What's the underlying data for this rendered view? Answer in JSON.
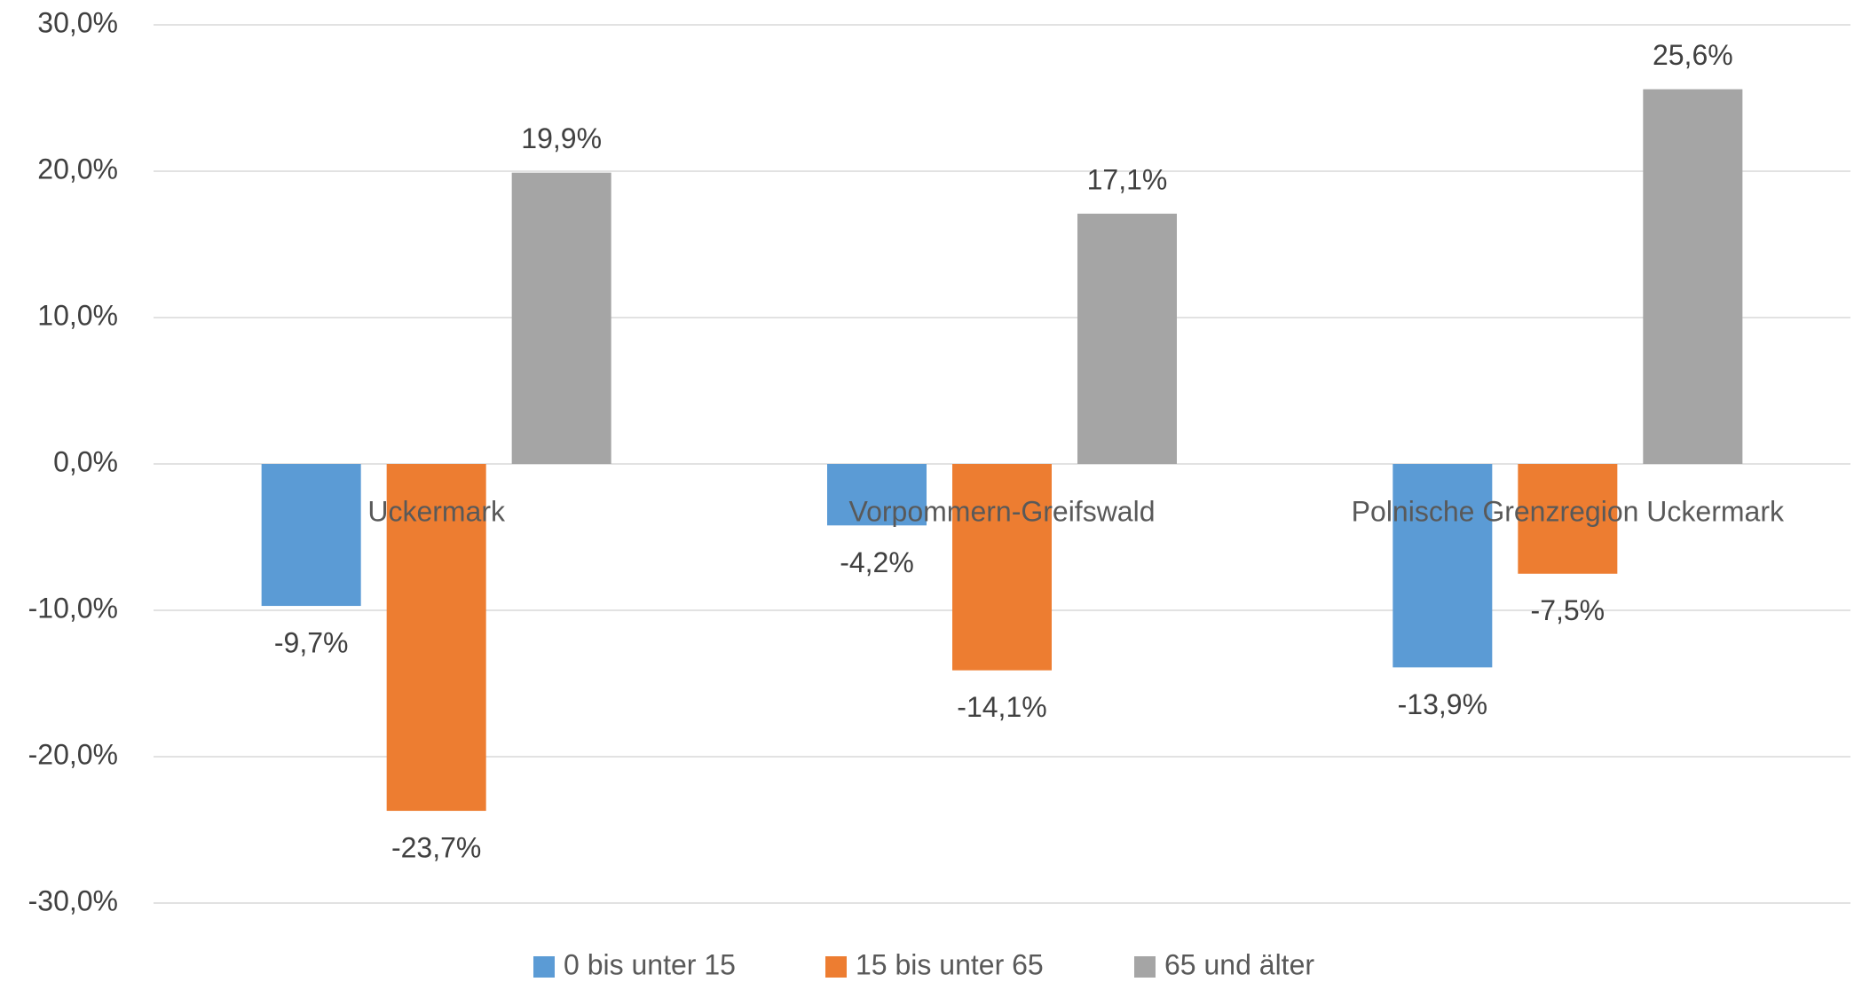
{
  "chart_data": {
    "type": "bar",
    "categories": [
      "Uckermark",
      "Vorpommern-Greifswald",
      "Polnische Grenzregion Uckermark"
    ],
    "series": [
      {
        "name": "0 bis unter 15",
        "color": "#5b9bd5",
        "values": [
          -9.7,
          -4.2,
          -13.9
        ],
        "value_labels": [
          "-9,7%",
          "-4,2%",
          "-13,9%"
        ]
      },
      {
        "name": "15 bis unter 65",
        "color": "#ed7d31",
        "values": [
          -23.7,
          -14.1,
          -7.5
        ],
        "value_labels": [
          "-23,7%",
          "-14,1%",
          "-7,5%"
        ]
      },
      {
        "name": "65 und älter",
        "color": "#a5a5a5",
        "values": [
          19.9,
          17.1,
          25.6
        ],
        "value_labels": [
          "19,9%",
          "17,1%",
          "25,6%"
        ]
      }
    ],
    "ylim": [
      -30,
      30
    ],
    "yticks": [
      {
        "value": -30,
        "label": "-30,0%"
      },
      {
        "value": -20,
        "label": "-20,0%"
      },
      {
        "value": -10,
        "label": "-10,0%"
      },
      {
        "value": 0,
        "label": "0,0%"
      },
      {
        "value": 10,
        "label": "10,0%"
      },
      {
        "value": 20,
        "label": "20,0%"
      },
      {
        "value": 30,
        "label": "30,0%"
      }
    ],
    "grid": true,
    "legend": "bottom"
  }
}
